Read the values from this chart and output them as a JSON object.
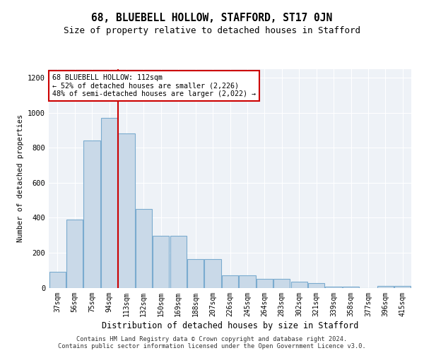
{
  "title": "68, BLUEBELL HOLLOW, STAFFORD, ST17 0JN",
  "subtitle": "Size of property relative to detached houses in Stafford",
  "xlabel": "Distribution of detached houses by size in Stafford",
  "ylabel": "Number of detached properties",
  "categories": [
    "37sqm",
    "56sqm",
    "75sqm",
    "94sqm",
    "113sqm",
    "132sqm",
    "150sqm",
    "169sqm",
    "188sqm",
    "207sqm",
    "226sqm",
    "245sqm",
    "264sqm",
    "283sqm",
    "302sqm",
    "321sqm",
    "339sqm",
    "358sqm",
    "377sqm",
    "396sqm",
    "415sqm"
  ],
  "values": [
    90,
    390,
    840,
    970,
    880,
    450,
    295,
    295,
    165,
    165,
    70,
    70,
    50,
    50,
    35,
    25,
    5,
    5,
    0,
    10,
    10
  ],
  "bar_color": "#c9d9e8",
  "bar_edge_color": "#7aabcf",
  "annotation_line1": "68 BLUEBELL HOLLOW: 112sqm",
  "annotation_line2": "← 52% of detached houses are smaller (2,226)",
  "annotation_line3": "48% of semi-detached houses are larger (2,022) →",
  "annotation_box_color": "#ffffff",
  "annotation_box_edge": "#cc0000",
  "vline_color": "#cc0000",
  "ylim": [
    0,
    1250
  ],
  "yticks": [
    0,
    200,
    400,
    600,
    800,
    1000,
    1200
  ],
  "footer1": "Contains HM Land Registry data © Crown copyright and database right 2024.",
  "footer2": "Contains public sector information licensed under the Open Government Licence v3.0.",
  "title_fontsize": 10.5,
  "subtitle_fontsize": 9,
  "bg_color": "#eef2f7"
}
